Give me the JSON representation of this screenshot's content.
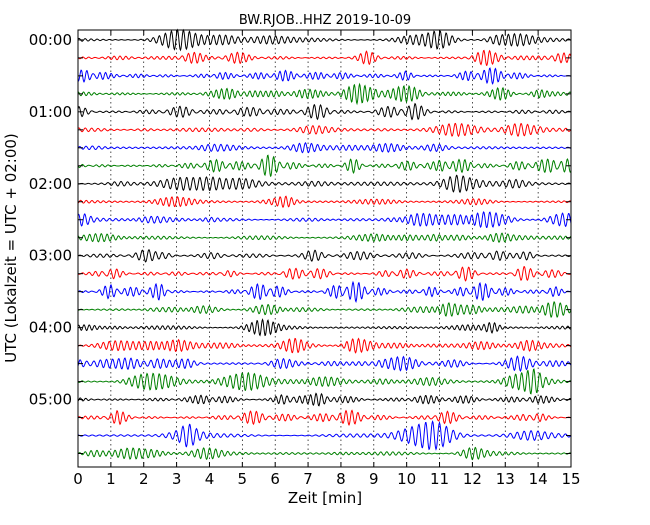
{
  "chart_data": {
    "type": "line",
    "title": "BW.RJOB..HHZ 2019-10-09",
    "xlabel": "Zeit  [min]",
    "ylabel": "UTC (Lokalzeit = UTC + 02:00)",
    "xlim": [
      0,
      15
    ],
    "x_ticks": [
      "0",
      "1",
      "2",
      "3",
      "4",
      "5",
      "6",
      "7",
      "8",
      "9",
      "10",
      "11",
      "12",
      "13",
      "14",
      "15"
    ],
    "hour_labels": [
      "00:00",
      "01:00",
      "02:00",
      "03:00",
      "04:00",
      "05:00"
    ],
    "traces_per_hour": 4,
    "trace_colors": [
      "#000000",
      "#ff0000",
      "#0000ff",
      "#008000"
    ],
    "grid": "vertical dotted lines at each minute",
    "series_count": 24
  }
}
